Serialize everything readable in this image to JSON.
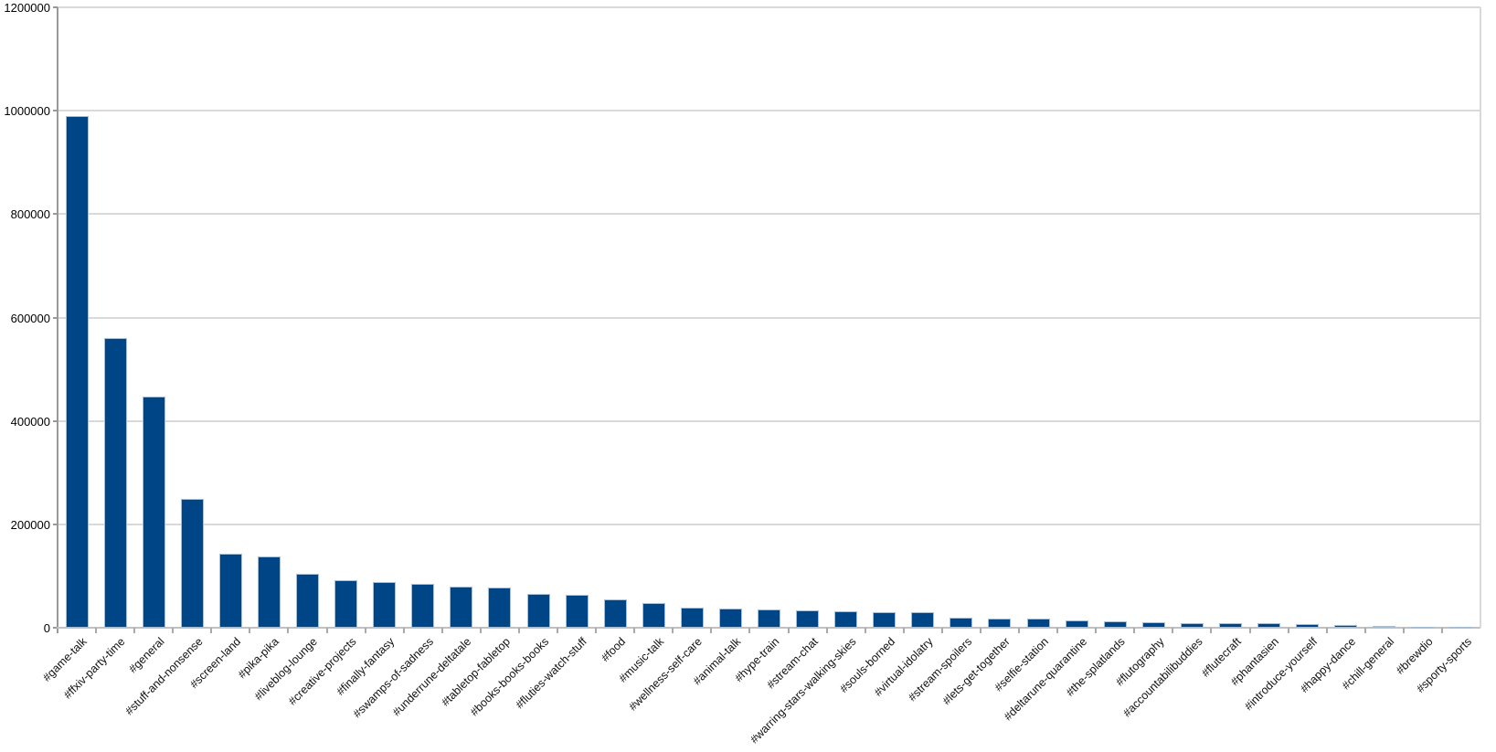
{
  "chart_data": {
    "type": "bar",
    "title": "",
    "xlabel": "",
    "ylabel": "",
    "categories": [
      "#game-talk",
      "#ffxiv-party-time",
      "#general",
      "#stuff-and-nonsense",
      "#screen-land",
      "#pika-pika",
      "#liveblog-lounge",
      "#creative-projects",
      "#finally-fantasy",
      "#swamps-of-sadness",
      "#underrune-deltatale",
      "#tabletop-fabletop",
      "#books-books-books",
      "#fluties-watch-stuff",
      "#food",
      "#music-talk",
      "#wellness-self-care",
      "#animal-talk",
      "#hype-train",
      "#stream-chat",
      "#warring-stars-walking-skies",
      "#souls-borned",
      "#virtual-idolatry",
      "#stream-spoilers",
      "#lets-get-together",
      "#selfie-station",
      "#deltarune-quarantine",
      "#the-splatlands",
      "#flutography",
      "#accountabilibuddies",
      "#flutecraft",
      "#phantasien",
      "#introduce-yourself",
      "#happy-dance",
      "#chill-general",
      "#brewdio",
      "#sporty-sports"
    ],
    "values": [
      990000,
      560000,
      448000,
      250000,
      144000,
      137000,
      104000,
      92000,
      88000,
      84000,
      80000,
      77000,
      65000,
      63000,
      55000,
      48000,
      38000,
      37000,
      35000,
      34000,
      31000,
      30500,
      30000,
      20000,
      18500,
      17500,
      15000,
      12000,
      10500,
      9000,
      8500,
      8000,
      7000,
      6000,
      4000,
      2500,
      2000
    ],
    "ylim": [
      0,
      1200000
    ],
    "y_tick_step": 200000,
    "y_tick_labels": [
      "0",
      "200000",
      "400000",
      "600000",
      "800000",
      "1000000",
      "1200000"
    ],
    "grid": "horizontal",
    "legend": "none",
    "bar_fill_color": "#004586",
    "bar_border_color": "#a6bfd8",
    "gridline_color": "#d9d9d9",
    "axis_color": "#999999"
  }
}
